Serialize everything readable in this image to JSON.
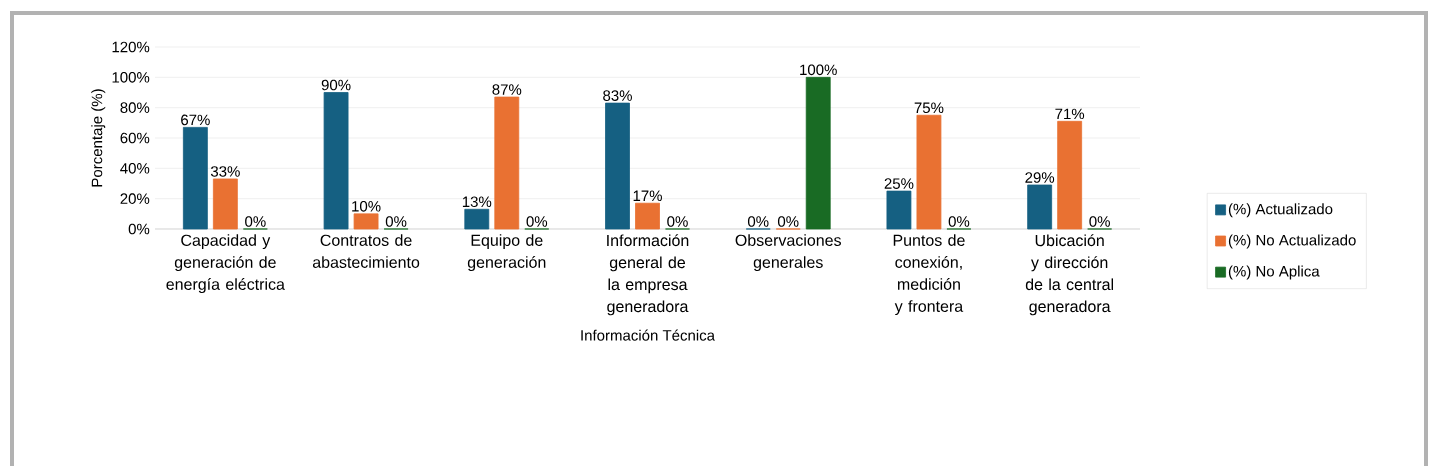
{
  "chart_data": {
    "type": "bar",
    "xlabel": "Información Técnica",
    "ylabel": "Porcentaje (%)",
    "categories": [
      "Capacidad y generación de energía eléctrica",
      "Contratos de abastecimiento",
      "Equipo de generación",
      "Información general de la empresa generadora",
      "Observaciones generales",
      "Puntos de conexión, medición y frontera",
      "Ubicación y dirección de la central generadora"
    ],
    "series": [
      {
        "name": "(%) Actualizado",
        "color": "#156082",
        "values": [
          67,
          90,
          13,
          83,
          0,
          25,
          29
        ],
        "value_labels": [
          "67%",
          "90%",
          "13%",
          "83%",
          "0%",
          "25%",
          "29%"
        ]
      },
      {
        "name": "(%) No Actualizado",
        "color": "#e97132",
        "values": [
          33,
          10,
          87,
          17,
          0,
          75,
          71
        ],
        "value_labels": [
          "33%",
          "10%",
          "87%",
          "17%",
          "0%",
          "75%",
          "71%"
        ]
      },
      {
        "name": "(%) No Aplica",
        "color": "#196b24",
        "values": [
          0,
          0,
          0,
          0,
          100,
          0,
          0
        ],
        "value_labels": [
          "0%",
          "0%",
          "0%",
          "0%",
          "100%",
          "0%",
          "0%"
        ]
      }
    ],
    "ylim": [
      0,
      120
    ],
    "yticks": [
      {
        "value": 0,
        "label": "0%"
      },
      {
        "value": 20,
        "label": "20%"
      },
      {
        "value": 40,
        "label": "40%"
      },
      {
        "value": 60,
        "label": "60%"
      },
      {
        "value": 80,
        "label": "80%"
      },
      {
        "value": 100,
        "label": "100%"
      },
      {
        "value": 120,
        "label": "120%"
      }
    ],
    "grid": "y",
    "legend": "right"
  }
}
